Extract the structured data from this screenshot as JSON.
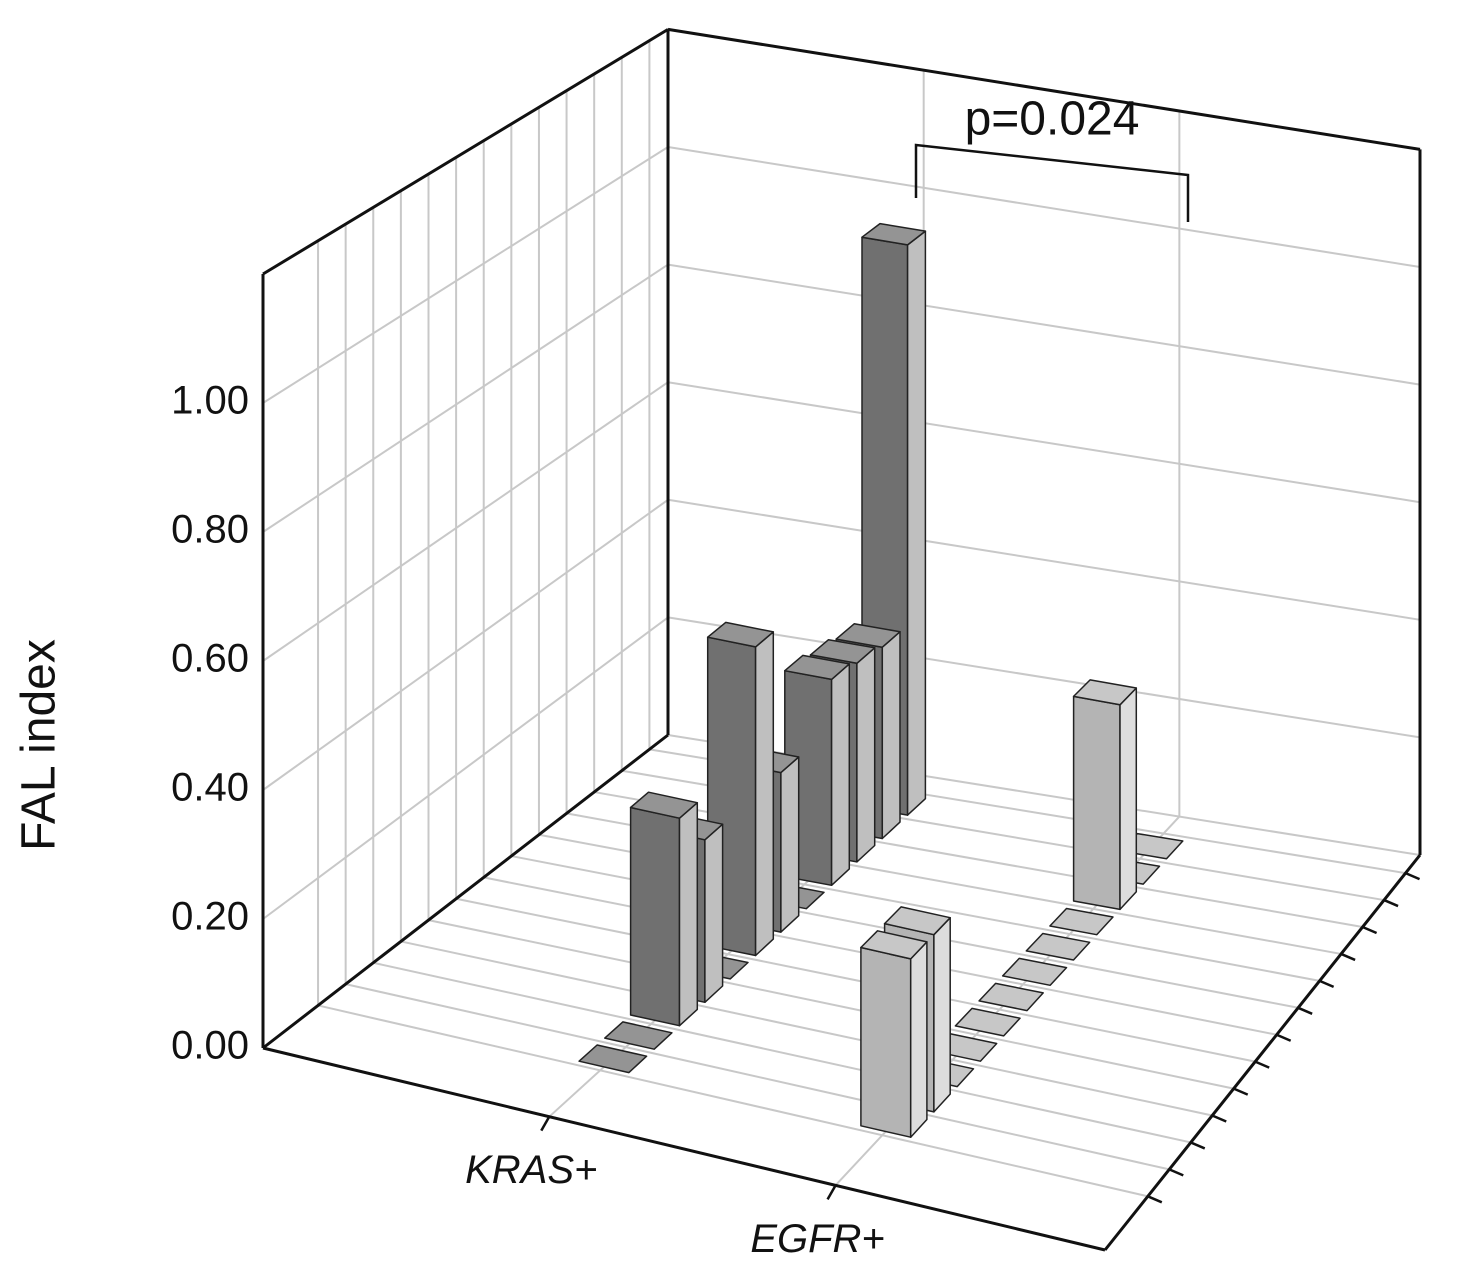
{
  "chart_data": {
    "type": "bar3d",
    "ylabel": "FAL index",
    "annotation": "p=0.024",
    "categories": [
      "KRAS+",
      "EGFR+"
    ],
    "colors": [
      "#707070",
      "#b4b4b4"
    ],
    "values": [
      [
        0,
        0,
        0.33,
        0.26,
        0,
        0.5,
        0.26,
        0,
        0.34,
        0.33,
        0.32,
        0.96
      ],
      [
        0.28,
        0.28,
        0,
        0,
        0,
        0,
        0,
        0,
        0,
        0.34,
        0,
        0
      ]
    ],
    "ylim": [
      0,
      1.2
    ],
    "yticks": [
      {
        "value": 0,
        "label": "0.00"
      },
      {
        "value": 0.2,
        "label": "0.20"
      },
      {
        "value": 0.4,
        "label": "0.40"
      },
      {
        "value": 0.6,
        "label": "0.60"
      },
      {
        "value": 0.8,
        "label": "0.80"
      },
      {
        "value": 1.0,
        "label": "1.00"
      }
    ],
    "grid": true
  }
}
